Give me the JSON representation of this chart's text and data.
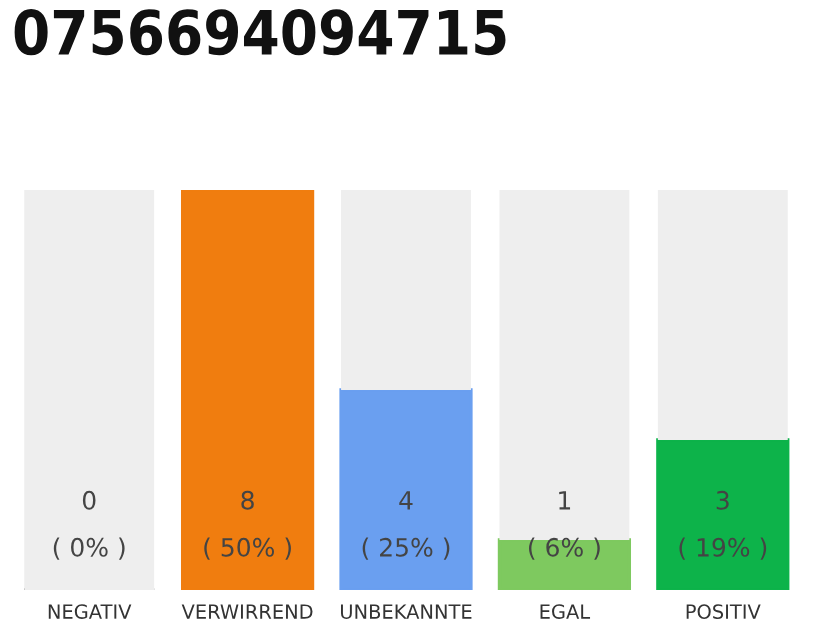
{
  "chart_data": {
    "type": "bar",
    "title": "0756694094715",
    "stacked": true,
    "categories": [
      "NEGATIV",
      "VERWIRREND",
      "UNBEKANNTE",
      "EGAL",
      "POSITIV"
    ],
    "series": [
      {
        "colors": [
          "#333333",
          "#f07d0f",
          "#6a9ff0",
          "#7ec95f",
          "#0db34a"
        ],
        "values": [
          0,
          8,
          4,
          1,
          3
        ],
        "value_labels": [
          "0\n( 0% )",
          "8\n( 50% )",
          "4\n( 25% )",
          "1\n( 6% )",
          "3\n( 19% )"
        ]
      },
      {
        "color": "#eeeeee",
        "values": [
          8,
          0,
          4,
          7,
          5
        ]
      }
    ],
    "grid": false
  }
}
